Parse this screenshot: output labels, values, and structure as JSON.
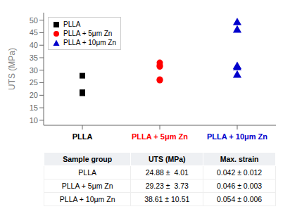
{
  "chart_data": [
    {
      "type": "scatter",
      "ylabel": "UTS (MPa)",
      "categories": [
        "PLLA",
        "PLLA + 5μm Zn",
        "PLLA + 10μm Zn"
      ],
      "series": [
        {
          "name": "PLLA",
          "color": "#000000",
          "marker": "square",
          "x": [
            "PLLA",
            "PLLA",
            "PLLA"
          ],
          "values": [
            21.2,
            20.8,
            27.8
          ]
        },
        {
          "name": "PLLA + 5μm Zn",
          "color": "#ff0000",
          "marker": "circle",
          "x": [
            "PLLA + 5μm Zn",
            "PLLA + 5μm Zn",
            "PLLA + 5μm Zn",
            "PLLA + 5μm Zn",
            "PLLA + 5μm Zn"
          ],
          "values": [
            26.0,
            26.3,
            31.5,
            32.0,
            33.0
          ]
        },
        {
          "name": "PLLA + 10μm Zn",
          "color": "#0000cc",
          "marker": "triangle",
          "x": [
            "PLLA + 10μm Zn",
            "PLLA + 10μm Zn",
            "PLLA + 10μm Zn",
            "PLLA + 10μm Zn",
            "PLLA + 10μm Zn"
          ],
          "values": [
            28.0,
            31.0,
            31.5,
            46.0,
            49.0
          ]
        }
      ],
      "ylim": [
        8,
        53
      ],
      "yticks": [
        10,
        15,
        20,
        25,
        30,
        35,
        40,
        45,
        50
      ],
      "grid": false,
      "legend": "upper left"
    },
    {
      "type": "table",
      "columns": [
        "Sample group",
        "UTS (MPa)",
        "Max. strain"
      ],
      "rows": [
        [
          "PLLA",
          "24.88 ±  4.01",
          "0.042 ± 0.012"
        ],
        [
          "PLLA + 5μm Zn",
          "29.23 ±  3.73",
          "0.046 ± 0.003"
        ],
        [
          "PLLA + 10μm Zn",
          "38.61 ± 10.51",
          "0.054 ± 0.006"
        ]
      ]
    }
  ]
}
